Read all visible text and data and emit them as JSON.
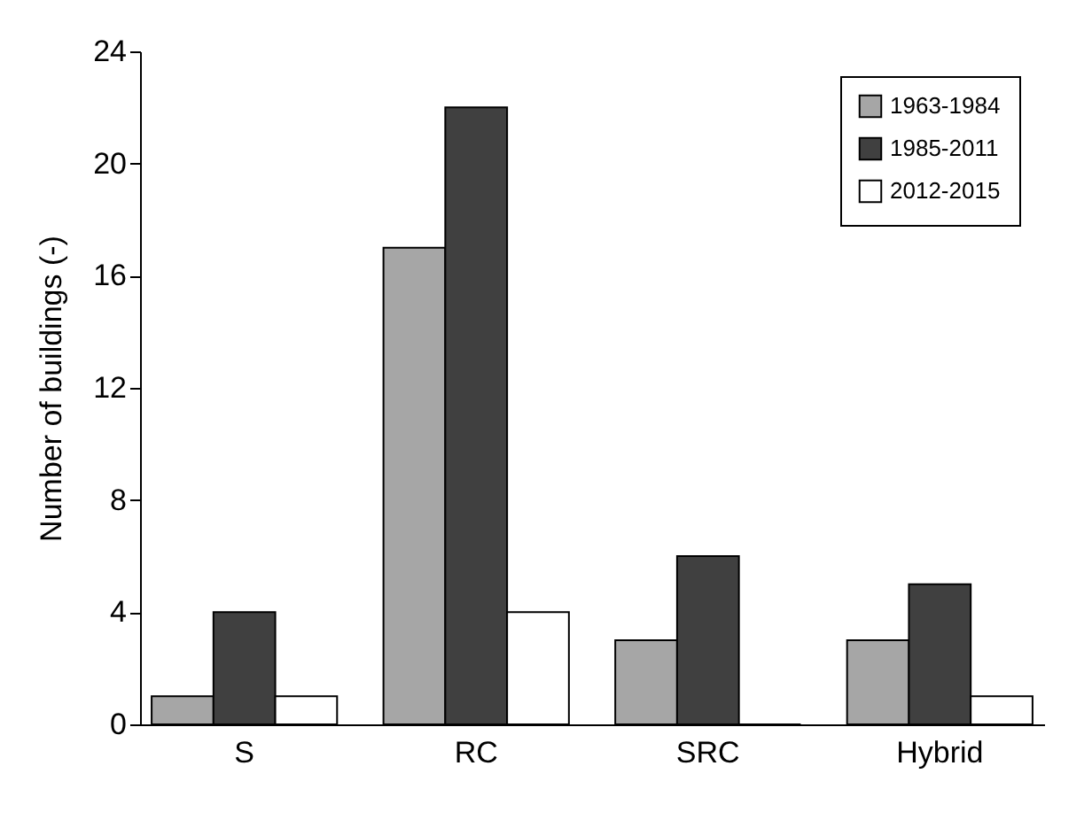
{
  "chart_data": {
    "type": "bar",
    "ylabel": "Number of buildings (-)",
    "categories": [
      "S",
      "RC",
      "SRC",
      "Hybrid"
    ],
    "series": [
      {
        "name": "1963-1984",
        "color": "#a6a6a6",
        "values": [
          1,
          17,
          3,
          3
        ]
      },
      {
        "name": "1985-2011",
        "color": "#404040",
        "values": [
          4,
          22,
          6,
          5
        ]
      },
      {
        "name": "2012-2015",
        "color": "#ffffff",
        "values": [
          1,
          4,
          0,
          1
        ]
      }
    ],
    "ylim": [
      0,
      24
    ],
    "yticks": [
      0,
      4,
      8,
      12,
      16,
      20,
      24
    ],
    "grid": false,
    "legend": "top right"
  }
}
